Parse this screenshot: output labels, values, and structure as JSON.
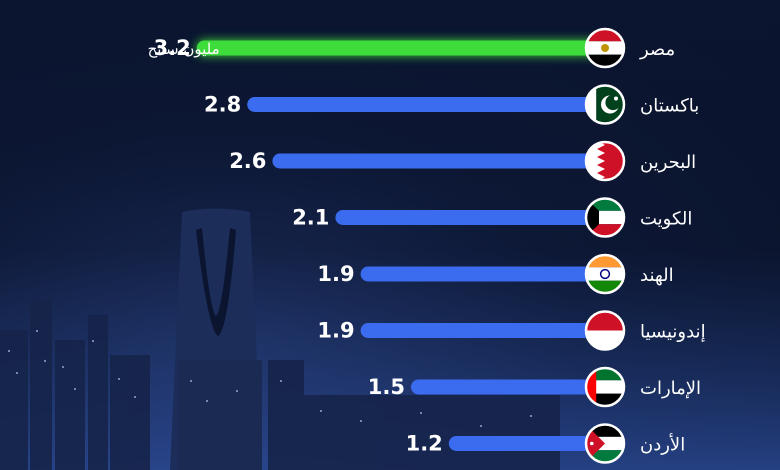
{
  "chart_data": {
    "type": "bar",
    "orientation": "horizontal",
    "categories": [
      "مصر",
      "باكستان",
      "البحرين",
      "الكويت",
      "الهند",
      "إندونيسيا",
      "الإمارات",
      "الأردن"
    ],
    "values": [
      3.2,
      2.8,
      2.6,
      2.1,
      1.9,
      1.9,
      1.5,
      1.2
    ],
    "value_labels": [
      "3.2",
      "2.8",
      "2.6",
      "2.1",
      "1.9",
      "1.9",
      "1.5",
      "1.2"
    ],
    "unit": "مليون سائح",
    "flags": [
      "egypt-flag-icon",
      "pakistan-flag-icon",
      "bahrain-flag-icon",
      "kuwait-flag-icon",
      "india-flag-icon",
      "indonesia-flag-icon",
      "uae-flag-icon",
      "jordan-flag-icon"
    ],
    "colors": {
      "highlight": "#3ddc3a",
      "bar": "#3b6cf0",
      "text": "#ffffff",
      "background": "#0b1530"
    },
    "legend": "none",
    "grid": false
  }
}
